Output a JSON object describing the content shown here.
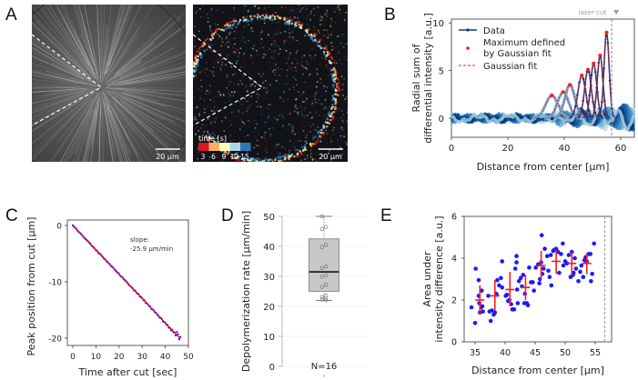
{
  "panels": {
    "A": {
      "letter": "A"
    },
    "B": {
      "letter": "B"
    },
    "C": {
      "letter": "C"
    },
    "D": {
      "letter": "D"
    },
    "E": {
      "letter": "E"
    }
  },
  "micrographs": {
    "left": {
      "description": "radial microtubule aster, grayscale",
      "scalebar_label": "20 µm"
    },
    "right": {
      "description": "time-colored differential intensity",
      "scalebar_label": "20 µm",
      "colorbar": {
        "title": "time [s]",
        "ticks": [
          "3",
          "6",
          "9",
          "12",
          "15"
        ],
        "colors": [
          "#d7191c",
          "#fdae61",
          "#ffffbf",
          "#abd9e9",
          "#2c7bb6"
        ]
      }
    }
  },
  "chart_data": [
    {
      "id": "B",
      "type": "line",
      "xlabel": "Distance from center [µm]",
      "ylabel": [
        "Radial sum of",
        "differential intensity [a.u.]"
      ],
      "xlim": [
        0,
        65
      ],
      "ylim": [
        -2,
        10.5
      ],
      "xticks": [
        0,
        20,
        40,
        60
      ],
      "yticks": [
        0,
        5,
        10
      ],
      "annotation": {
        "text": "laser cut",
        "x": 56.8
      },
      "legend": {
        "placement": "top-left",
        "entries": [
          {
            "label": "Data",
            "color": "#0b3a7e",
            "style": "line-dot"
          },
          {
            "label": "Maximum defined\nby Gaussian fit",
            "color": "#ff1a1a",
            "style": "dot"
          },
          {
            "label": "Gaussian fit",
            "color": "#ff1a1a",
            "style": "dashed"
          }
        ]
      },
      "gaussian_peaks": [
        {
          "x": 35.6,
          "y": 2.4,
          "sigma": 2.2
        },
        {
          "x": 39.6,
          "y": 2.75,
          "sigma": 2.0
        },
        {
          "x": 42.0,
          "y": 3.5,
          "sigma": 1.8
        },
        {
          "x": 46.2,
          "y": 4.5,
          "sigma": 1.4
        },
        {
          "x": 48.4,
          "y": 5.1,
          "sigma": 1.2
        },
        {
          "x": 50.4,
          "y": 5.75,
          "sigma": 1.1
        },
        {
          "x": 52.7,
          "y": 6.6,
          "sigma": 1.0
        },
        {
          "x": 55.0,
          "y": 9.0,
          "sigma": 0.9
        }
      ],
      "series_colors": [
        "#c6dbef",
        "#9ecae1",
        "#6baed6",
        "#4292c6",
        "#2171b5",
        "#08519c",
        "#08306b",
        "#9ecae1"
      ]
    },
    {
      "id": "C",
      "type": "scatter",
      "xlabel": "Time after cut [sec]",
      "ylabel": "Peak position from cut [µm]",
      "xlim": [
        -1,
        50
      ],
      "ylim": [
        -21.5,
        1.2
      ],
      "xticks": [
        0,
        10,
        20,
        30,
        40,
        50
      ],
      "yticks": [
        0,
        -10,
        -20
      ],
      "annotation": "slope:\n-25.9 µm/min",
      "fit": {
        "slope_per_sec": -0.4317,
        "intercept": 0,
        "color": "#ff0000"
      },
      "point_color": "#1a1aff",
      "x": [
        0,
        0.5,
        1,
        1.5,
        2,
        2.5,
        3,
        3.5,
        4,
        4.5,
        5,
        5.5,
        6,
        6.5,
        7,
        7.5,
        8,
        8.5,
        9,
        9.5,
        10,
        10.5,
        11,
        11.5,
        12,
        12.5,
        13,
        13.5,
        14,
        14.5,
        15,
        15.5,
        16,
        16.5,
        17,
        17.5,
        18,
        18.5,
        19,
        19.5,
        20,
        20.5,
        21,
        21.5,
        22,
        22.5,
        23,
        23.5,
        24,
        24.5,
        25,
        25.5,
        26,
        26.5,
        27,
        27.5,
        28,
        28.5,
        29,
        29.5,
        30,
        30.5,
        31,
        31.5,
        32,
        32.5,
        33,
        33.5,
        34,
        34.5,
        35,
        35.5,
        36,
        36.5,
        37,
        37.5,
        38,
        38.5,
        39,
        39.5,
        40,
        40.5,
        41,
        41.5,
        42,
        42.5,
        43,
        43.5,
        44,
        44.5,
        45,
        45.5,
        46,
        46.5
      ],
      "y": [
        0,
        -0.2,
        -0.4,
        -0.6,
        -0.9,
        -1.1,
        -1.3,
        -1.5,
        -1.7,
        -2.0,
        -2.2,
        -2.4,
        -2.6,
        -2.8,
        -3.0,
        -3.2,
        -3.5,
        -3.7,
        -3.9,
        -4.1,
        -4.4,
        -4.5,
        -4.8,
        -5.0,
        -5.1,
        -5.4,
        -5.6,
        -5.9,
        -6.0,
        -6.3,
        -6.5,
        -6.7,
        -6.9,
        -7.2,
        -7.3,
        -7.5,
        -7.8,
        -8.0,
        -8.2,
        -8.4,
        -8.6,
        -8.9,
        -9.1,
        -9.2,
        -9.5,
        -9.7,
        -9.9,
        -10.1,
        -10.4,
        -10.6,
        -10.8,
        -11.0,
        -11.2,
        -11.5,
        -11.6,
        -11.9,
        -12.1,
        -12.2,
        -12.6,
        -12.7,
        -12.9,
        -13.2,
        -13.3,
        -13.7,
        -13.8,
        -14.0,
        -14.3,
        -14.4,
        -14.8,
        -14.9,
        -15.1,
        -15.4,
        -15.5,
        -15.8,
        -16.0,
        -16.3,
        -16.4,
        -16.6,
        -17.0,
        -17.1,
        -17.3,
        -17.6,
        -17.7,
        -18.1,
        -18.2,
        -18.6,
        -18.5,
        -18.9,
        -19.0,
        -19.5,
        -18.9,
        -19.3,
        -20.2,
        -19.8
      ]
    },
    {
      "id": "D",
      "type": "box",
      "ylabel": "Depolymerization rate [µm/min]",
      "ylim": [
        0,
        52
      ],
      "yticks": [
        0,
        10,
        20,
        30,
        40,
        50
      ],
      "box": {
        "whisker_low": 22,
        "q1": 25,
        "median": 31.5,
        "q3": 42.5,
        "whisker_high": 50,
        "fill": "#c8c8c8"
      },
      "points": [
        50,
        46.5,
        45.8,
        40.5,
        39.8,
        33.3,
        32.8,
        30.4,
        29.9,
        27.2,
        26.5,
        23.6,
        23.1,
        22.6,
        22.3,
        22.0
      ],
      "n_label": "N=16"
    },
    {
      "id": "E",
      "type": "scatter",
      "xlabel": "Distance from center [µm]",
      "ylabel": [
        "Area under",
        "intensity difference [a.u.]"
      ],
      "xlim": [
        33.2,
        58
      ],
      "ylim": [
        0,
        6
      ],
      "xticks": [
        35,
        40,
        45,
        50,
        55
      ],
      "yticks": [
        0,
        2,
        4,
        6
      ],
      "vline": 56.6,
      "point_color": "#1a1aff",
      "points": [
        [
          34.4,
          1.65
        ],
        [
          35.0,
          0.9
        ],
        [
          35.1,
          3.5
        ],
        [
          35.6,
          2.95
        ],
        [
          35.6,
          2.2
        ],
        [
          35.7,
          1.85
        ],
        [
          35.8,
          1.4
        ],
        [
          36.0,
          1.65
        ],
        [
          36.1,
          2.45
        ],
        [
          36.2,
          1.7
        ],
        [
          36.3,
          1.45
        ],
        [
          37.2,
          2.2
        ],
        [
          37.4,
          1.45
        ],
        [
          37.6,
          1.0
        ],
        [
          37.8,
          1.5
        ],
        [
          38.1,
          1.3
        ],
        [
          38.3,
          1.4
        ],
        [
          38.5,
          2.3
        ],
        [
          38.6,
          2.25
        ],
        [
          38.7,
          2.95
        ],
        [
          39.0,
          2.7
        ],
        [
          39.3,
          3.05
        ],
        [
          39.5,
          2.6
        ],
        [
          39.5,
          3.85
        ],
        [
          40.1,
          2.2
        ],
        [
          40.3,
          2.25
        ],
        [
          40.5,
          1.95
        ],
        [
          40.7,
          2.0
        ],
        [
          41.0,
          1.8
        ],
        [
          41.2,
          1.55
        ],
        [
          41.5,
          1.55
        ],
        [
          41.7,
          3.5
        ],
        [
          41.9,
          4.1
        ],
        [
          41.9,
          3.8
        ],
        [
          42.0,
          2.5
        ],
        [
          42.1,
          1.85
        ],
        [
          42.3,
          2.9
        ],
        [
          42.6,
          3.05
        ],
        [
          42.8,
          2.65
        ],
        [
          43.0,
          3.2
        ],
        [
          43.2,
          1.85
        ],
        [
          43.3,
          2.3
        ],
        [
          43.6,
          1.85
        ],
        [
          43.8,
          1.75
        ],
        [
          44.0,
          3.55
        ],
        [
          44.3,
          2.85
        ],
        [
          44.6,
          2.85
        ],
        [
          44.8,
          2.45
        ],
        [
          45.1,
          3.55
        ],
        [
          45.5,
          3.7
        ],
        [
          45.7,
          2.8
        ],
        [
          45.8,
          3.0
        ],
        [
          46.0,
          3.8
        ],
        [
          46.1,
          5.1
        ],
        [
          46.2,
          3.25
        ],
        [
          46.4,
          3.5
        ],
        [
          46.6,
          4.45
        ],
        [
          47.0,
          4.1
        ],
        [
          47.2,
          3.4
        ],
        [
          47.4,
          3.1
        ],
        [
          47.6,
          4.15
        ],
        [
          47.7,
          2.7
        ],
        [
          48.0,
          4.35
        ],
        [
          48.2,
          4.4
        ],
        [
          48.5,
          4.45
        ],
        [
          48.8,
          4.3
        ],
        [
          49.0,
          3.3
        ],
        [
          49.3,
          4.2
        ],
        [
          49.6,
          4.7
        ],
        [
          49.7,
          3.65
        ],
        [
          50.0,
          3.85
        ],
        [
          50.3,
          3.75
        ],
        [
          50.6,
          4.15
        ],
        [
          50.9,
          3.1
        ],
        [
          51.1,
          4.3
        ],
        [
          51.3,
          3.2
        ],
        [
          51.4,
          3.3
        ],
        [
          51.6,
          4.0
        ],
        [
          51.8,
          3.5
        ],
        [
          52.2,
          2.9
        ],
        [
          52.5,
          3.35
        ],
        [
          52.7,
          3.65
        ],
        [
          53.0,
          3.1
        ],
        [
          53.2,
          3.9
        ],
        [
          53.4,
          4.05
        ],
        [
          53.6,
          3.85
        ],
        [
          53.9,
          4.2
        ],
        [
          54.2,
          4.2
        ],
        [
          54.3,
          2.9
        ],
        [
          54.5,
          3.25
        ],
        [
          54.8,
          4.7
        ]
      ],
      "bin_means": [
        {
          "x": 35.8,
          "y": 2.0,
          "err_low": 1.3,
          "err_high": 2.7
        },
        {
          "x": 38.3,
          "y": 2.2,
          "err_low": 1.5,
          "err_high": 2.95
        },
        {
          "x": 40.8,
          "y": 2.5,
          "err_low": 1.7,
          "err_high": 3.35
        },
        {
          "x": 43.4,
          "y": 2.6,
          "err_low": 2.0,
          "err_high": 3.2
        },
        {
          "x": 46.0,
          "y": 3.65,
          "err_low": 2.95,
          "err_high": 4.35
        },
        {
          "x": 48.5,
          "y": 3.85,
          "err_low": 3.25,
          "err_high": 4.4
        },
        {
          "x": 51.1,
          "y": 3.75,
          "err_low": 3.2,
          "err_high": 4.3
        },
        {
          "x": 53.6,
          "y": 3.75,
          "err_low": 3.25,
          "err_high": 4.25
        }
      ],
      "bin_color": "#ff1a1a"
    }
  ]
}
